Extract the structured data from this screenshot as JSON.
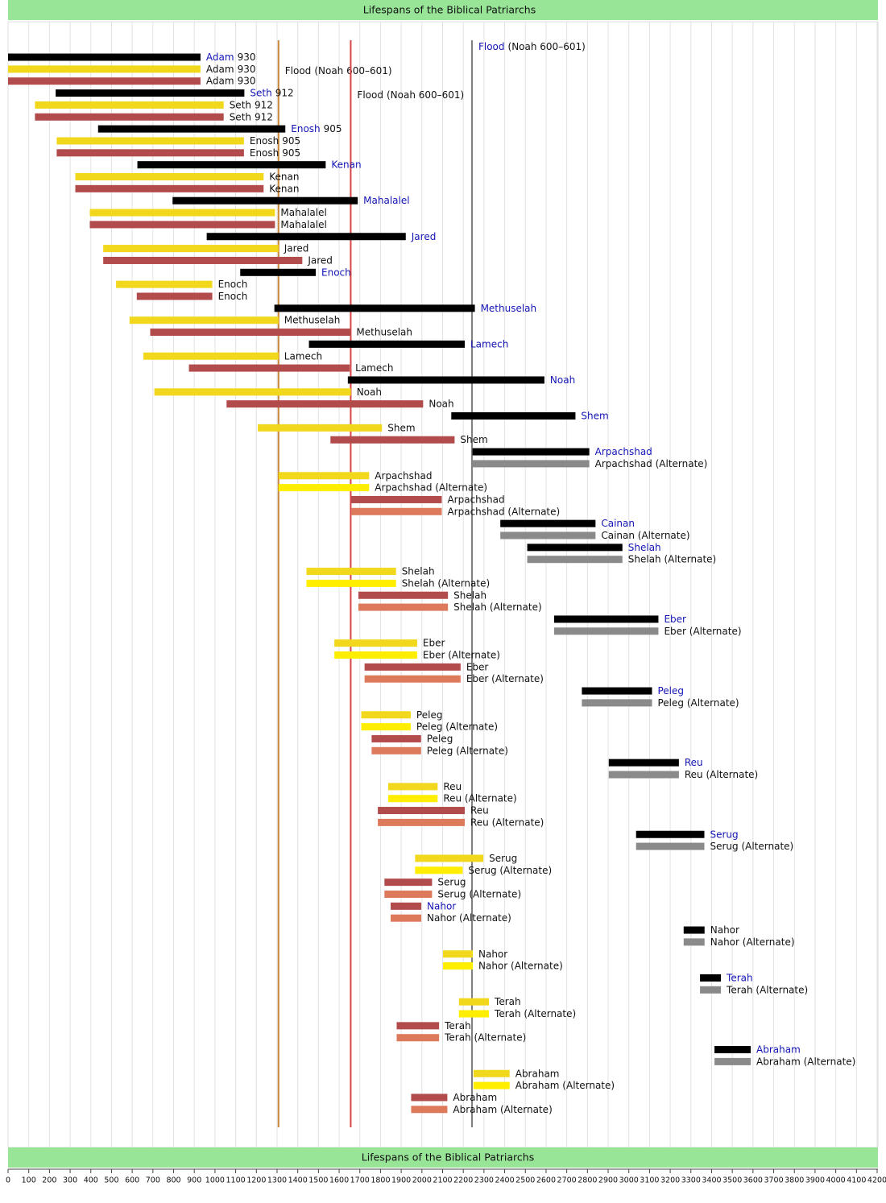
{
  "chart_data": {
    "type": "timeline",
    "title": "Lifespans of the Biblical Patriarchs",
    "xlim": [
      0,
      4200
    ],
    "xticks": [
      0,
      100,
      200,
      300,
      400,
      500,
      600,
      700,
      800,
      900,
      1000,
      1100,
      1200,
      1300,
      1400,
      1500,
      1600,
      1700,
      1800,
      1900,
      2000,
      2100,
      2200,
      2300,
      2400,
      2500,
      2600,
      2700,
      2800,
      2900,
      3000,
      3100,
      3200,
      3300,
      3400,
      3500,
      3600,
      3700,
      3800,
      3900,
      4000,
      4100,
      4200
    ],
    "grid": true,
    "banner_color": "#98e598",
    "link_color": "#1414b4",
    "flood_lines": [
      {
        "name": "Flood",
        "note": "(Noah 600–601)",
        "value": 1307,
        "color": "#c8873a",
        "link": false
      },
      {
        "name": "Flood",
        "note": "(Noah 600–601)",
        "value": 1656,
        "color": "#d84444",
        "link": false
      },
      {
        "name": "Flood",
        "note": "(Noah 600–601)",
        "value": 2242,
        "color": "#808080",
        "link": true
      }
    ],
    "bars": [
      {
        "label": "Adam",
        "start": 0,
        "end": 930,
        "color": "#000000",
        "link": true,
        "lifespan": 930
      },
      {
        "label": "Adam",
        "start": 0,
        "end": 930,
        "color": "#f2d81c",
        "link": false,
        "lifespan": 930
      },
      {
        "label": "Adam",
        "start": 0,
        "end": 930,
        "color": "#b24c4c",
        "link": false,
        "lifespan": 930
      },
      {
        "label": "Seth",
        "start": 230,
        "end": 1142,
        "color": "#000000",
        "link": true,
        "lifespan": 912
      },
      {
        "label": "Seth",
        "start": 130,
        "end": 1042,
        "color": "#f2d81c",
        "link": false,
        "lifespan": 912
      },
      {
        "label": "Seth",
        "start": 130,
        "end": 1042,
        "color": "#b24c4c",
        "link": false,
        "lifespan": 912
      },
      {
        "label": "Enosh",
        "start": 435,
        "end": 1340,
        "color": "#000000",
        "link": true,
        "lifespan": 905
      },
      {
        "label": "Enosh",
        "start": 235,
        "end": 1140,
        "color": "#f2d81c",
        "link": false,
        "lifespan": 905
      },
      {
        "label": "Enosh",
        "start": 235,
        "end": 1140,
        "color": "#b24c4c",
        "link": false,
        "lifespan": 905
      },
      {
        "label": "Kenan",
        "start": 625,
        "end": 1535,
        "color": "#000000",
        "link": true
      },
      {
        "label": "Kenan",
        "start": 325,
        "end": 1235,
        "color": "#f2d81c",
        "link": false
      },
      {
        "label": "Kenan",
        "start": 325,
        "end": 1235,
        "color": "#b24c4c",
        "link": false
      },
      {
        "label": "Mahalalel",
        "start": 795,
        "end": 1690,
        "color": "#000000",
        "link": true
      },
      {
        "label": "Mahalalel",
        "start": 395,
        "end": 1290,
        "color": "#f2d81c",
        "link": false
      },
      {
        "label": "Mahalalel",
        "start": 395,
        "end": 1290,
        "color": "#b24c4c",
        "link": false
      },
      {
        "label": "Jared",
        "start": 960,
        "end": 1922,
        "color": "#000000",
        "link": true
      },
      {
        "label": "Jared",
        "start": 460,
        "end": 1307,
        "color": "#f2d81c",
        "link": false
      },
      {
        "label": "Jared",
        "start": 460,
        "end": 1422,
        "color": "#b24c4c",
        "link": false
      },
      {
        "label": "Enoch",
        "start": 1122,
        "end": 1487,
        "color": "#000000",
        "link": true
      },
      {
        "label": "Enoch",
        "start": 522,
        "end": 987,
        "color": "#f2d81c",
        "link": false
      },
      {
        "label": "Enoch",
        "start": 622,
        "end": 987,
        "color": "#b24c4c",
        "link": false
      },
      {
        "label": "Methuselah",
        "start": 1287,
        "end": 2256,
        "color": "#000000",
        "link": true
      },
      {
        "label": "Methuselah",
        "start": 587,
        "end": 1307,
        "color": "#f2d81c",
        "link": false
      },
      {
        "label": "Methuselah",
        "start": 687,
        "end": 1656,
        "color": "#b24c4c",
        "link": false
      },
      {
        "label": "Lamech",
        "start": 1454,
        "end": 2207,
        "color": "#000000",
        "link": true
      },
      {
        "label": "Lamech",
        "start": 654,
        "end": 1307,
        "color": "#f2d81c",
        "link": false
      },
      {
        "label": "Lamech",
        "start": 874,
        "end": 1651,
        "color": "#b24c4c",
        "link": false
      },
      {
        "label": "Noah",
        "start": 1642,
        "end": 2592,
        "color": "#000000",
        "link": true
      },
      {
        "label": "Noah",
        "start": 707,
        "end": 1657,
        "color": "#f2d81c",
        "link": false
      },
      {
        "label": "Noah",
        "start": 1056,
        "end": 2006,
        "color": "#b24c4c",
        "link": false
      },
      {
        "label": "Shem",
        "start": 2142,
        "end": 2742,
        "color": "#000000",
        "link": true
      },
      {
        "label": "Shem",
        "start": 1207,
        "end": 1807,
        "color": "#f2d81c",
        "link": false
      },
      {
        "label": "Shem",
        "start": 1558,
        "end": 2158,
        "color": "#b24c4c",
        "link": false
      },
      {
        "label": "Arpachshad",
        "start": 2244,
        "end": 2809,
        "color": "#000000",
        "link": true
      },
      {
        "label": "Arpachshad (Alternate)",
        "start": 2244,
        "end": 2809,
        "color": "#8a8a8a",
        "link": false
      },
      {
        "label": "Arpachshad",
        "start": 1307,
        "end": 1745,
        "color": "#f2d81c",
        "link": false
      },
      {
        "label": "Arpachshad (Alternate)",
        "start": 1307,
        "end": 1745,
        "color": "#ffee00",
        "link": false
      },
      {
        "label": "Arpachshad",
        "start": 1658,
        "end": 2096,
        "color": "#b24c4c",
        "link": false
      },
      {
        "label": "Arpachshad (Alternate)",
        "start": 1658,
        "end": 2096,
        "color": "#de7a5c",
        "link": false
      },
      {
        "label": "Cainan",
        "start": 2379,
        "end": 2839,
        "color": "#000000",
        "link": true
      },
      {
        "label": "Cainan (Alternate)",
        "start": 2379,
        "end": 2839,
        "color": "#8a8a8a",
        "link": false
      },
      {
        "label": "Shelah",
        "start": 2509,
        "end": 2969,
        "color": "#000000",
        "link": true
      },
      {
        "label": "Shelah (Alternate)",
        "start": 2509,
        "end": 2969,
        "color": "#8a8a8a",
        "link": false
      },
      {
        "label": "Shelah",
        "start": 1442,
        "end": 1875,
        "color": "#f2d81c",
        "link": false
      },
      {
        "label": "Shelah (Alternate)",
        "start": 1442,
        "end": 1875,
        "color": "#ffee00",
        "link": false
      },
      {
        "label": "Shelah",
        "start": 1693,
        "end": 2126,
        "color": "#b24c4c",
        "link": false
      },
      {
        "label": "Shelah (Alternate)",
        "start": 1693,
        "end": 2126,
        "color": "#de7a5c",
        "link": false
      },
      {
        "label": "Eber",
        "start": 2639,
        "end": 3143,
        "color": "#000000",
        "link": true
      },
      {
        "label": "Eber (Alternate)",
        "start": 2639,
        "end": 3143,
        "color": "#8a8a8a",
        "link": false
      },
      {
        "label": "Eber",
        "start": 1577,
        "end": 1977,
        "color": "#f2d81c",
        "link": false
      },
      {
        "label": "Eber (Alternate)",
        "start": 1577,
        "end": 1977,
        "color": "#ffee00",
        "link": false
      },
      {
        "label": "Eber",
        "start": 1723,
        "end": 2187,
        "color": "#b24c4c",
        "link": false
      },
      {
        "label": "Eber (Alternate)",
        "start": 1723,
        "end": 2187,
        "color": "#de7a5c",
        "link": false
      },
      {
        "label": "Peleg",
        "start": 2773,
        "end": 3112,
        "color": "#000000",
        "link": true
      },
      {
        "label": "Peleg (Alternate)",
        "start": 2773,
        "end": 3112,
        "color": "#8a8a8a",
        "link": false
      },
      {
        "label": "Peleg",
        "start": 1707,
        "end": 1946,
        "color": "#f2d81c",
        "link": false
      },
      {
        "label": "Peleg (Alternate)",
        "start": 1707,
        "end": 1946,
        "color": "#ffee00",
        "link": false
      },
      {
        "label": "Peleg",
        "start": 1757,
        "end": 1996,
        "color": "#b24c4c",
        "link": false
      },
      {
        "label": "Peleg (Alternate)",
        "start": 1757,
        "end": 1996,
        "color": "#de7a5c",
        "link": false
      },
      {
        "label": "Reu",
        "start": 2903,
        "end": 3242,
        "color": "#000000",
        "link": true
      },
      {
        "label": "Reu (Alternate)",
        "start": 2903,
        "end": 3242,
        "color": "#8a8a8a",
        "link": false
      },
      {
        "label": "Reu",
        "start": 1837,
        "end": 2076,
        "color": "#f2d81c",
        "link": false
      },
      {
        "label": "Reu (Alternate)",
        "start": 1837,
        "end": 2076,
        "color": "#ffee00",
        "link": false
      },
      {
        "label": "Reu",
        "start": 1787,
        "end": 2207,
        "color": "#b24c4c",
        "link": false
      },
      {
        "label": "Reu (Alternate)",
        "start": 1787,
        "end": 2207,
        "color": "#de7a5c",
        "link": false
      },
      {
        "label": "Serug",
        "start": 3035,
        "end": 3365,
        "color": "#000000",
        "link": true
      },
      {
        "label": "Serug (Alternate)",
        "start": 3035,
        "end": 3365,
        "color": "#8a8a8a",
        "link": false
      },
      {
        "label": "Serug",
        "start": 1967,
        "end": 2297,
        "color": "#f2d81c",
        "link": false
      },
      {
        "label": "Serug (Alternate)",
        "start": 1967,
        "end": 2197,
        "color": "#ffee00",
        "link": false
      },
      {
        "label": "Serug",
        "start": 1819,
        "end": 2049,
        "color": "#b24c4c",
        "link": false
      },
      {
        "label": "Serug (Alternate)",
        "start": 1819,
        "end": 2049,
        "color": "#de7a5c",
        "link": false
      },
      {
        "label": "Nahor",
        "start": 1849,
        "end": 1997,
        "color": "#b24c4c",
        "link": true
      },
      {
        "label": "Nahor (Alternate)",
        "start": 1849,
        "end": 1997,
        "color": "#de7a5c",
        "link": false
      },
      {
        "label": "Nahor",
        "start": 3265,
        "end": 3366,
        "color": "#000000",
        "link": false
      },
      {
        "label": "Nahor (Alternate)",
        "start": 3265,
        "end": 3366,
        "color": "#8a8a8a",
        "link": false
      },
      {
        "label": "Nahor",
        "start": 2102,
        "end": 2246,
        "color": "#f2d81c",
        "link": false
      },
      {
        "label": "Nahor (Alternate)",
        "start": 2102,
        "end": 2246,
        "color": "#ffee00",
        "link": false
      },
      {
        "label": "Terah",
        "start": 3344,
        "end": 3445,
        "color": "#000000",
        "link": true
      },
      {
        "label": "Terah (Alternate)",
        "start": 3344,
        "end": 3445,
        "color": "#8a8a8a",
        "link": false
      },
      {
        "label": "Terah",
        "start": 2179,
        "end": 2324,
        "color": "#f2d81c",
        "link": false
      },
      {
        "label": "Terah (Alternate)",
        "start": 2179,
        "end": 2324,
        "color": "#ffee00",
        "link": false
      },
      {
        "label": "Terah",
        "start": 1878,
        "end": 2083,
        "color": "#b24c4c",
        "link": false
      },
      {
        "label": "Terah (Alternate)",
        "start": 1878,
        "end": 2083,
        "color": "#de7a5c",
        "link": false
      },
      {
        "label": "Abraham",
        "start": 3414,
        "end": 3589,
        "color": "#000000",
        "link": true
      },
      {
        "label": "Abraham (Alternate)",
        "start": 3414,
        "end": 3589,
        "color": "#8a8a8a",
        "link": false
      },
      {
        "label": "Abraham",
        "start": 2249,
        "end": 2424,
        "color": "#f2d81c",
        "link": false
      },
      {
        "label": "Abraham (Alternate)",
        "start": 2249,
        "end": 2424,
        "color": "#ffee00",
        "link": false
      },
      {
        "label": "Abraham",
        "start": 1948,
        "end": 2123,
        "color": "#b24c4c",
        "link": false
      },
      {
        "label": "Abraham (Alternate)",
        "start": 1948,
        "end": 2123,
        "color": "#de7a5c",
        "link": false
      }
    ]
  }
}
